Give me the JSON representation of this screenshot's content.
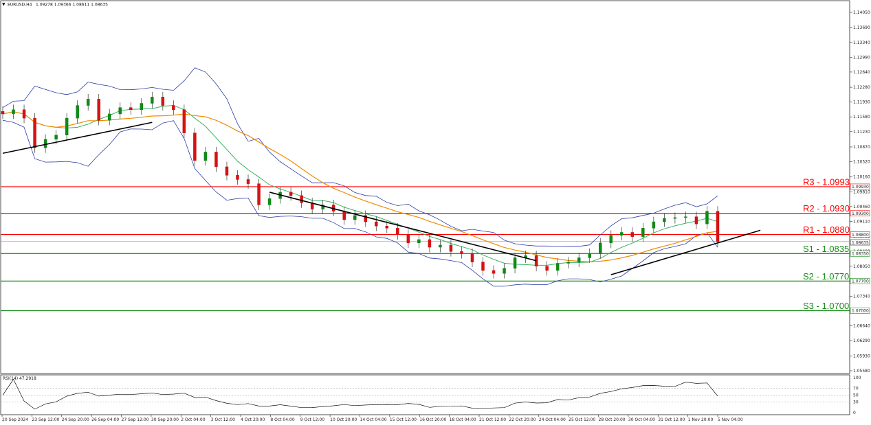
{
  "header": {
    "symbol": "EURUSD,H4",
    "ohlc": "1.09278 1.09366 1.08611 1.08635",
    "rsi_label": "RSI(14) 47.2918"
  },
  "price_axis": {
    "ticks": [
      "1.14050",
      "1.13690",
      "1.13340",
      "1.12990",
      "1.12640",
      "1.12280",
      "1.11930",
      "1.11580",
      "1.11230",
      "1.10870",
      "1.10520",
      "1.10160",
      "1.09810",
      "1.09460",
      "1.09110",
      "1.08755",
      "1.08400",
      "1.08050",
      "1.07700",
      "1.07340",
      "1.06990",
      "1.06640",
      "1.06290",
      "1.05930",
      "1.05580"
    ],
    "current_price_tag": "1.08635",
    "colors": {
      "resistance": "#ff0000",
      "support": "#138a13",
      "line": "#000000"
    }
  },
  "levels": [
    {
      "name": "R3",
      "value": 1.0993,
      "label": "R3 - 1.0993",
      "tag": "1.09930",
      "kind": "resistance"
    },
    {
      "name": "R2",
      "value": 1.093,
      "label": "R2 - 1.0930",
      "tag": "1.09300",
      "kind": "resistance"
    },
    {
      "name": "R1",
      "value": 1.088,
      "label": "R1 - 1.0880",
      "tag": "1.08800",
      "kind": "resistance"
    },
    {
      "name": "S1",
      "value": 1.0835,
      "label": "S1 - 1.0835",
      "tag": "1.08350",
      "kind": "support"
    },
    {
      "name": "S2",
      "value": 1.077,
      "label": "S2 - 1.0770",
      "tag": "1.07700",
      "kind": "support"
    },
    {
      "name": "S3",
      "value": 1.07,
      "label": "S3 - 1.0700",
      "tag": "1.07000",
      "kind": "support"
    }
  ],
  "time_axis": [
    "20 Sep 2024",
    "23 Sep 12:00",
    "24 Sep 20:00",
    "26 Sep 04:00",
    "27 Sep 12:00",
    "30 Sep 20:00",
    "2 Oct 04:00",
    "3 Oct 12:00",
    "4 Oct 20:00",
    "8 Oct 04:00",
    "9 Oct 12:00",
    "10 Oct 20:00",
    "14 Oct 04:00",
    "15 Oct 12:00",
    "16 Oct 20:00",
    "18 Oct 04:00",
    "21 Oct 12:00",
    "22 Oct 20:00",
    "24 Oct 04:00",
    "25 Oct 12:00",
    "28 Oct 20:00",
    "30 Oct 04:00",
    "31 Oct 12:00",
    "1 Nov 20:00",
    "5 Nov 04:00"
  ],
  "rsi_axis": [
    "100",
    "70",
    "50",
    "30",
    "0"
  ],
  "chart_data": {
    "type": "line",
    "title": "EURUSD,H4",
    "subtitle": "1.09278 1.09366 1.08611 1.08635",
    "ylim": [
      1.0558,
      1.1405
    ],
    "series": [
      {
        "name": "EURUSD,H4",
        "values": [
          1.1165,
          1.1175,
          1.1155,
          1.1085,
          1.1105,
          1.1115,
          1.1155,
          1.1185,
          1.12,
          1.115,
          1.1165,
          1.118,
          1.1175,
          1.119,
          1.1205,
          1.1185,
          1.1175,
          1.112,
          1.1055,
          1.1075,
          1.104,
          1.102,
          1.101,
          1.1,
          1.095,
          1.0965,
          1.098,
          1.0972,
          1.0955,
          1.094,
          1.095,
          1.0935,
          1.0915,
          1.0925,
          1.091,
          1.09,
          1.0895,
          1.088,
          1.086,
          1.0868,
          1.085,
          1.0855,
          1.084,
          1.0835,
          1.0815,
          1.0795,
          1.0788,
          1.08,
          1.0825,
          1.083,
          1.0805,
          1.0795,
          1.0812,
          1.0815,
          1.0825,
          1.0835,
          1.086,
          1.0878,
          1.0885,
          1.0875,
          1.0895,
          1.091,
          1.0918,
          1.092,
          1.0922,
          1.0905,
          1.0935,
          1.0863
        ]
      }
    ],
    "indicators": {
      "moving_averages": [
        "green MA",
        "orange MA"
      ],
      "bollinger_bands": true,
      "trendlines": 3
    },
    "rsi": {
      "period": 14,
      "last": 47.2918,
      "levels": [
        70,
        50,
        30
      ],
      "ylim": [
        0,
        100
      ]
    },
    "horizontal_levels": [
      1.0993,
      1.093,
      1.088,
      1.0835,
      1.077,
      1.07
    ]
  }
}
